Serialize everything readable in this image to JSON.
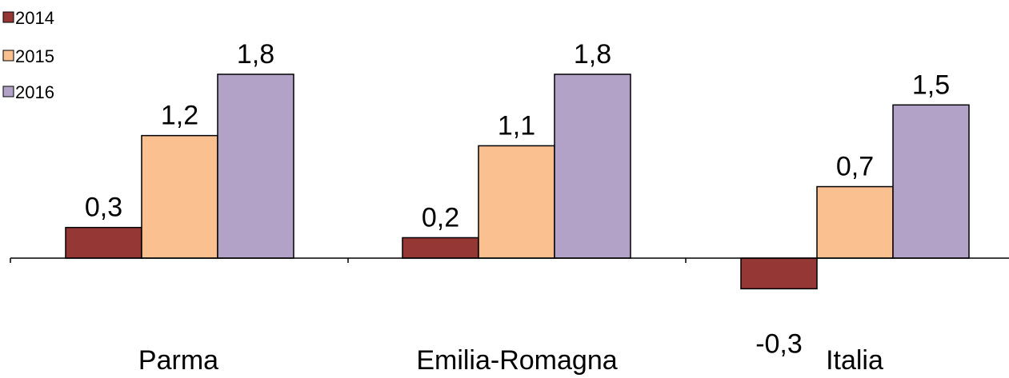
{
  "chart_data": {
    "type": "bar",
    "categories": [
      "Parma",
      "Emilia-Romagna",
      "Italia"
    ],
    "series": [
      {
        "name": "2014",
        "values": [
          0.3,
          0.2,
          -0.3
        ],
        "labels": [
          "0,3",
          "0,2",
          "-0,3"
        ],
        "color": "#953735"
      },
      {
        "name": "2015",
        "values": [
          1.2,
          1.1,
          0.7
        ],
        "labels": [
          "1,2",
          "1,1",
          "0,7"
        ],
        "color": "#FAC090"
      },
      {
        "name": "2016",
        "values": [
          1.8,
          1.8,
          1.5
        ],
        "labels": [
          "1,8",
          "1,8",
          "1,5"
        ],
        "color": "#B3A2C7"
      }
    ],
    "title": "",
    "xlabel": "",
    "ylabel": "",
    "ylim": [
      -0.5,
      2.1
    ],
    "grid": false,
    "legend": "top-left"
  }
}
